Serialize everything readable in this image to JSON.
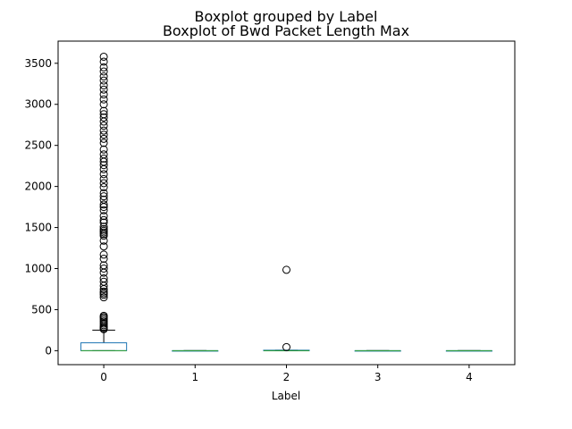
{
  "chart_data": {
    "type": "boxplot",
    "suptitle": "Boxplot grouped by Label",
    "title": "Boxplot of Bwd Packet Length Max",
    "xlabel": "Label",
    "ylabel": "",
    "categories": [
      "0",
      "1",
      "2",
      "3",
      "4"
    ],
    "ylim": [
      -170,
      3770
    ],
    "yticks": [
      0,
      500,
      1000,
      1500,
      2000,
      2500,
      3000,
      3500
    ],
    "grid": false,
    "box_color": "#1f77b4",
    "median_color": "#2ca02c",
    "whisker_color": "#000000",
    "boxes": [
      {
        "category": "0",
        "whislo": 0,
        "q1": 0,
        "median": 0,
        "q3": 96,
        "whishi": 250,
        "fliers": [
          262,
          275,
          290,
          310,
          330,
          355,
          375,
          395,
          410,
          425,
          650,
          680,
          700,
          720,
          750,
          790,
          840,
          880,
          950,
          1000,
          1040,
          1120,
          1170,
          1270,
          1340,
          1400,
          1420,
          1440,
          1460,
          1480,
          1510,
          1560,
          1590,
          1640,
          1710,
          1750,
          1780,
          1840,
          1880,
          1920,
          1990,
          2040,
          2090,
          2150,
          2210,
          2260,
          2300,
          2340,
          2390,
          2450,
          2530,
          2580,
          2630,
          2680,
          2740,
          2790,
          2840,
          2880,
          2920,
          3000,
          3060,
          3120,
          3180,
          3230,
          3290,
          3340,
          3400,
          3450,
          3520,
          3580
        ]
      },
      {
        "category": "1",
        "whislo": 0,
        "q1": 0,
        "median": 0,
        "q3": 0,
        "whishi": 0,
        "fliers": []
      },
      {
        "category": "2",
        "whislo": 0,
        "q1": 0,
        "median": 0,
        "q3": 6,
        "whishi": 6,
        "fliers": [
          44,
          985
        ]
      },
      {
        "category": "3",
        "whislo": 0,
        "q1": 0,
        "median": 0,
        "q3": 0,
        "whishi": 0,
        "fliers": []
      },
      {
        "category": "4",
        "whislo": 0,
        "q1": 0,
        "median": 0,
        "q3": 0,
        "whishi": 0,
        "fliers": []
      }
    ]
  }
}
